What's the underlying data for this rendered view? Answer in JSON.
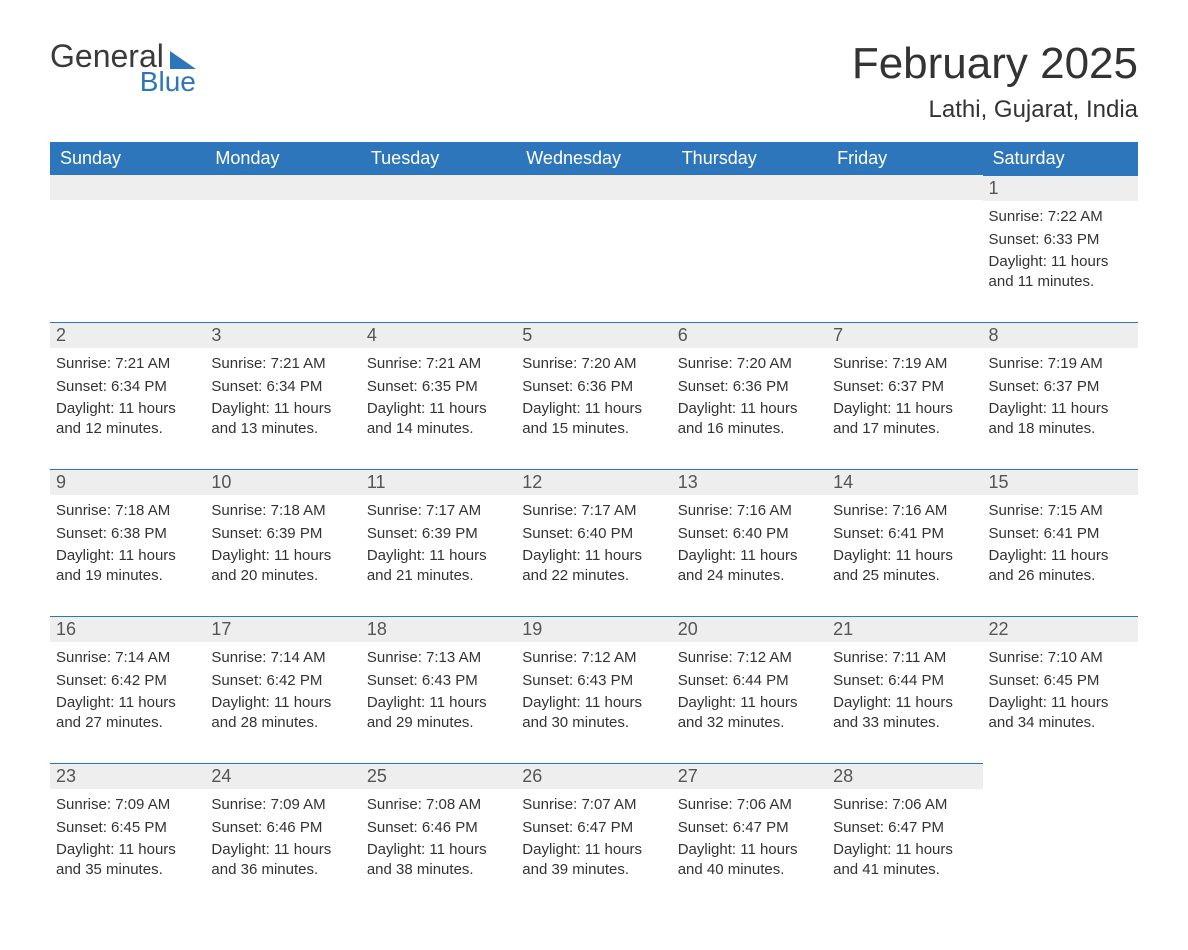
{
  "brand": {
    "general": "General",
    "blue": "Blue"
  },
  "header": {
    "month_title": "February 2025",
    "location": "Lathi, Gujarat, India"
  },
  "colors": {
    "header_bg": "#2d76bb",
    "header_text": "#ffffff",
    "daynum_bg": "#eeeeee",
    "daynum_border": "#2d76bb",
    "body_text": "#333333",
    "page_bg": "#ffffff"
  },
  "typography": {
    "month_title_fontsize": 44,
    "location_fontsize": 24,
    "weekday_fontsize": 18,
    "daynum_fontsize": 18,
    "body_fontsize": 15
  },
  "weekdays": [
    "Sunday",
    "Monday",
    "Tuesday",
    "Wednesday",
    "Thursday",
    "Friday",
    "Saturday"
  ],
  "weeks": [
    [
      null,
      null,
      null,
      null,
      null,
      null,
      {
        "day": "1",
        "sunrise": "Sunrise: 7:22 AM",
        "sunset": "Sunset: 6:33 PM",
        "daylight": "Daylight: 11 hours and 11 minutes."
      }
    ],
    [
      {
        "day": "2",
        "sunrise": "Sunrise: 7:21 AM",
        "sunset": "Sunset: 6:34 PM",
        "daylight": "Daylight: 11 hours and 12 minutes."
      },
      {
        "day": "3",
        "sunrise": "Sunrise: 7:21 AM",
        "sunset": "Sunset: 6:34 PM",
        "daylight": "Daylight: 11 hours and 13 minutes."
      },
      {
        "day": "4",
        "sunrise": "Sunrise: 7:21 AM",
        "sunset": "Sunset: 6:35 PM",
        "daylight": "Daylight: 11 hours and 14 minutes."
      },
      {
        "day": "5",
        "sunrise": "Sunrise: 7:20 AM",
        "sunset": "Sunset: 6:36 PM",
        "daylight": "Daylight: 11 hours and 15 minutes."
      },
      {
        "day": "6",
        "sunrise": "Sunrise: 7:20 AM",
        "sunset": "Sunset: 6:36 PM",
        "daylight": "Daylight: 11 hours and 16 minutes."
      },
      {
        "day": "7",
        "sunrise": "Sunrise: 7:19 AM",
        "sunset": "Sunset: 6:37 PM",
        "daylight": "Daylight: 11 hours and 17 minutes."
      },
      {
        "day": "8",
        "sunrise": "Sunrise: 7:19 AM",
        "sunset": "Sunset: 6:37 PM",
        "daylight": "Daylight: 11 hours and 18 minutes."
      }
    ],
    [
      {
        "day": "9",
        "sunrise": "Sunrise: 7:18 AM",
        "sunset": "Sunset: 6:38 PM",
        "daylight": "Daylight: 11 hours and 19 minutes."
      },
      {
        "day": "10",
        "sunrise": "Sunrise: 7:18 AM",
        "sunset": "Sunset: 6:39 PM",
        "daylight": "Daylight: 11 hours and 20 minutes."
      },
      {
        "day": "11",
        "sunrise": "Sunrise: 7:17 AM",
        "sunset": "Sunset: 6:39 PM",
        "daylight": "Daylight: 11 hours and 21 minutes."
      },
      {
        "day": "12",
        "sunrise": "Sunrise: 7:17 AM",
        "sunset": "Sunset: 6:40 PM",
        "daylight": "Daylight: 11 hours and 22 minutes."
      },
      {
        "day": "13",
        "sunrise": "Sunrise: 7:16 AM",
        "sunset": "Sunset: 6:40 PM",
        "daylight": "Daylight: 11 hours and 24 minutes."
      },
      {
        "day": "14",
        "sunrise": "Sunrise: 7:16 AM",
        "sunset": "Sunset: 6:41 PM",
        "daylight": "Daylight: 11 hours and 25 minutes."
      },
      {
        "day": "15",
        "sunrise": "Sunrise: 7:15 AM",
        "sunset": "Sunset: 6:41 PM",
        "daylight": "Daylight: 11 hours and 26 minutes."
      }
    ],
    [
      {
        "day": "16",
        "sunrise": "Sunrise: 7:14 AM",
        "sunset": "Sunset: 6:42 PM",
        "daylight": "Daylight: 11 hours and 27 minutes."
      },
      {
        "day": "17",
        "sunrise": "Sunrise: 7:14 AM",
        "sunset": "Sunset: 6:42 PM",
        "daylight": "Daylight: 11 hours and 28 minutes."
      },
      {
        "day": "18",
        "sunrise": "Sunrise: 7:13 AM",
        "sunset": "Sunset: 6:43 PM",
        "daylight": "Daylight: 11 hours and 29 minutes."
      },
      {
        "day": "19",
        "sunrise": "Sunrise: 7:12 AM",
        "sunset": "Sunset: 6:43 PM",
        "daylight": "Daylight: 11 hours and 30 minutes."
      },
      {
        "day": "20",
        "sunrise": "Sunrise: 7:12 AM",
        "sunset": "Sunset: 6:44 PM",
        "daylight": "Daylight: 11 hours and 32 minutes."
      },
      {
        "day": "21",
        "sunrise": "Sunrise: 7:11 AM",
        "sunset": "Sunset: 6:44 PM",
        "daylight": "Daylight: 11 hours and 33 minutes."
      },
      {
        "day": "22",
        "sunrise": "Sunrise: 7:10 AM",
        "sunset": "Sunset: 6:45 PM",
        "daylight": "Daylight: 11 hours and 34 minutes."
      }
    ],
    [
      {
        "day": "23",
        "sunrise": "Sunrise: 7:09 AM",
        "sunset": "Sunset: 6:45 PM",
        "daylight": "Daylight: 11 hours and 35 minutes."
      },
      {
        "day": "24",
        "sunrise": "Sunrise: 7:09 AM",
        "sunset": "Sunset: 6:46 PM",
        "daylight": "Daylight: 11 hours and 36 minutes."
      },
      {
        "day": "25",
        "sunrise": "Sunrise: 7:08 AM",
        "sunset": "Sunset: 6:46 PM",
        "daylight": "Daylight: 11 hours and 38 minutes."
      },
      {
        "day": "26",
        "sunrise": "Sunrise: 7:07 AM",
        "sunset": "Sunset: 6:47 PM",
        "daylight": "Daylight: 11 hours and 39 minutes."
      },
      {
        "day": "27",
        "sunrise": "Sunrise: 7:06 AM",
        "sunset": "Sunset: 6:47 PM",
        "daylight": "Daylight: 11 hours and 40 minutes."
      },
      {
        "day": "28",
        "sunrise": "Sunrise: 7:06 AM",
        "sunset": "Sunset: 6:47 PM",
        "daylight": "Daylight: 11 hours and 41 minutes."
      },
      null
    ]
  ]
}
